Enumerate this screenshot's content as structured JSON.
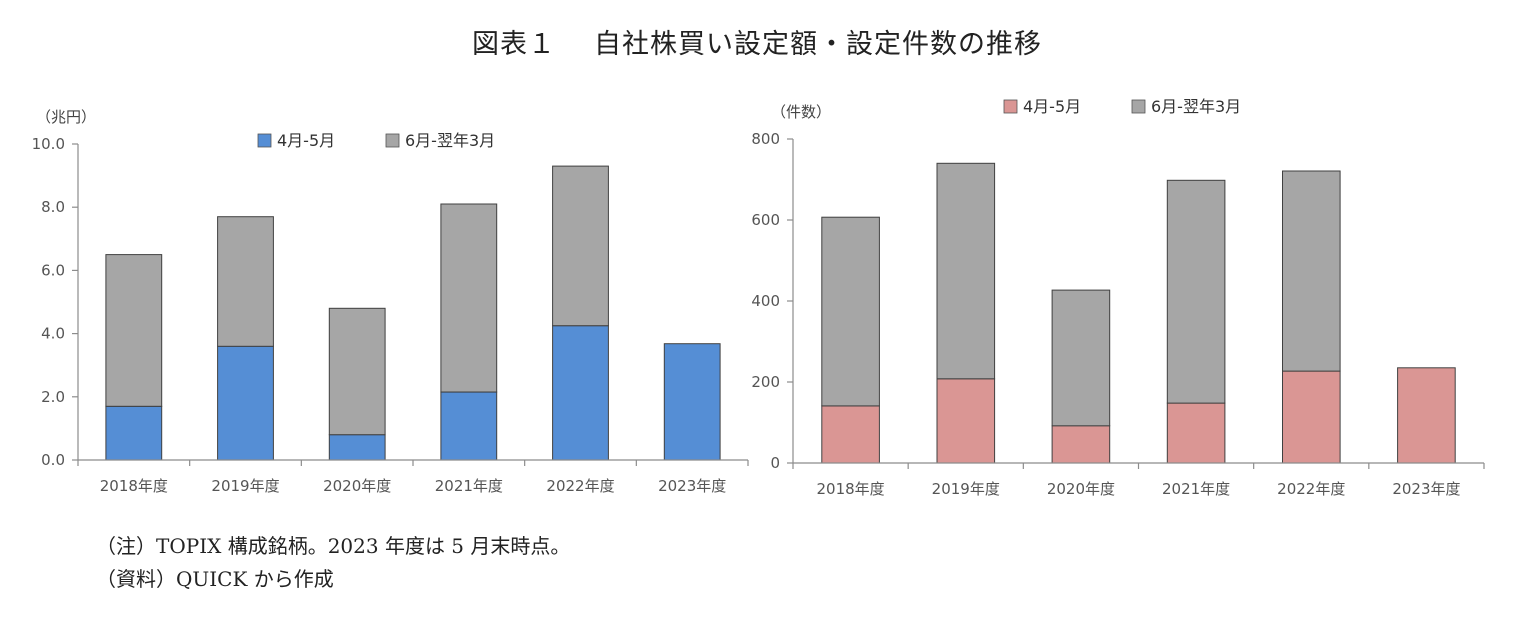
{
  "title": {
    "figure_no": "図表１",
    "text": "自社株買い設定額・設定件数の推移"
  },
  "chart_data": [
    {
      "type": "bar",
      "stacked": true,
      "unit_label": "（兆円）",
      "categories": [
        "2018年度",
        "2019年度",
        "2020年度",
        "2021年度",
        "2022年度",
        "2023年度"
      ],
      "series": [
        {
          "name": "4月-5月",
          "color": "#558ed5",
          "values": [
            1.7,
            3.6,
            0.8,
            2.15,
            4.25,
            3.68
          ]
        },
        {
          "name": "6月-翌年3月",
          "color": "#a6a6a6",
          "values": [
            4.8,
            4.1,
            4.0,
            5.95,
            5.05,
            0
          ]
        }
      ],
      "ylim": [
        0,
        10
      ],
      "yticks": [
        "0.0",
        "2.0",
        "4.0",
        "6.0",
        "8.0",
        "10.0"
      ],
      "legend": "top-center",
      "grid": false
    },
    {
      "type": "bar",
      "stacked": true,
      "unit_label": "（件数）",
      "categories": [
        "2018年度",
        "2019年度",
        "2020年度",
        "2021年度",
        "2022年度",
        "2023年度"
      ],
      "series": [
        {
          "name": "4月-5月",
          "color": "#da9694",
          "values": [
            141,
            208,
            92,
            148,
            227,
            235
          ]
        },
        {
          "name": "6月-翌年3月",
          "color": "#a6a6a6",
          "values": [
            466,
            532,
            335,
            550,
            494,
            0
          ]
        }
      ],
      "ylim": [
        0,
        800
      ],
      "yticks": [
        "0",
        "200",
        "400",
        "600",
        "800"
      ],
      "legend": "top",
      "grid": false
    }
  ],
  "notes": {
    "note": "（注）TOPIX 構成銘柄。2023 年度は 5 月末時点。",
    "source": "（資料）QUICK から作成"
  }
}
